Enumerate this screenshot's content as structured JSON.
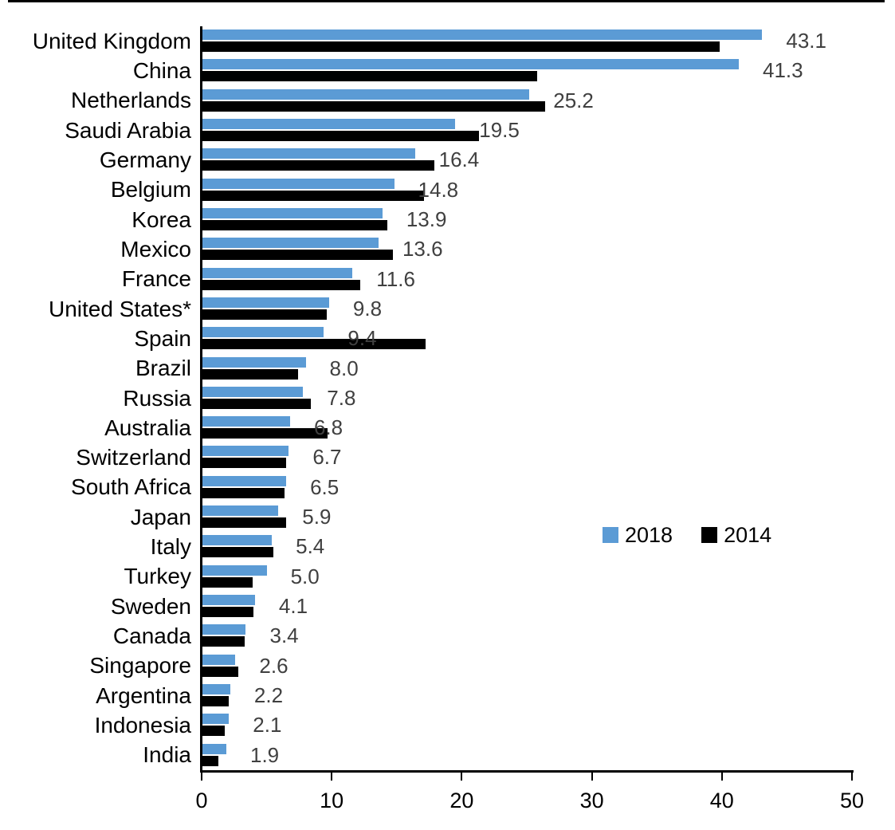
{
  "chart_data": {
    "type": "bar",
    "orientation": "horizontal",
    "title": "",
    "xlabel": "",
    "ylabel": "",
    "xlim": [
      0,
      50
    ],
    "x_ticks": [
      "0",
      "10",
      "20",
      "30",
      "40",
      "50"
    ],
    "grid": false,
    "legend_position": "middle-right",
    "categories": [
      "United Kingdom",
      "China",
      "Netherlands",
      "Saudi Arabia",
      "Germany",
      "Belgium",
      "Korea",
      "Mexico",
      "France",
      "United States*",
      "Spain",
      "Brazil",
      "Russia",
      "Australia",
      "Switzerland",
      "South Africa",
      "Japan",
      "Italy",
      "Turkey",
      "Sweden",
      "Canada",
      "Singapore",
      "Argentina",
      "Indonesia",
      "India"
    ],
    "series": [
      {
        "name": "2018",
        "color": "#5B9BD5",
        "values": [
          43.1,
          41.3,
          25.2,
          19.5,
          16.4,
          14.8,
          13.9,
          13.6,
          11.6,
          9.8,
          9.4,
          8.0,
          7.8,
          6.8,
          6.7,
          6.5,
          5.9,
          5.4,
          5.0,
          4.1,
          3.4,
          2.6,
          2.2,
          2.1,
          1.9
        ],
        "data_labels": [
          "43.1",
          "41.3",
          "25.2",
          "19.5",
          "16.4",
          "14.8",
          "13.9",
          "13.6",
          "11.6",
          "9.8",
          "9.4",
          "8.0",
          "7.8",
          "6.8",
          "6.7",
          "6.5",
          "5.9",
          "5.4",
          "5.0",
          "4.1",
          "3.4",
          "2.6",
          "2.2",
          "2.1",
          "1.9"
        ]
      },
      {
        "name": "2014",
        "color": "#000000",
        "values": [
          39.8,
          25.8,
          26.4,
          21.3,
          17.9,
          17.1,
          14.3,
          14.7,
          12.2,
          9.6,
          17.2,
          7.4,
          8.4,
          9.7,
          6.5,
          6.4,
          6.5,
          5.5,
          3.9,
          4.0,
          3.3,
          2.8,
          2.1,
          1.8,
          1.3
        ]
      }
    ],
    "value_label_color": "#404040",
    "axis_color": "#000000"
  }
}
